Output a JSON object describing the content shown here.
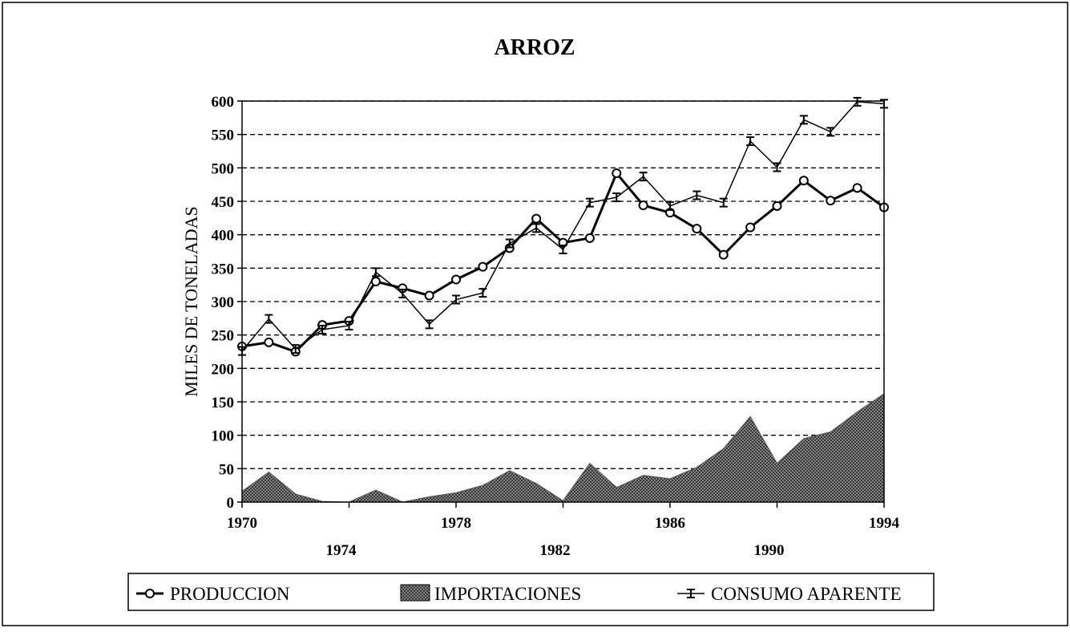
{
  "chart_data": {
    "type": "line",
    "title": "ARROZ",
    "ylabel": "MILES DE TONELADAS",
    "x": [
      1970,
      1971,
      1972,
      1973,
      1974,
      1975,
      1976,
      1977,
      1978,
      1979,
      1980,
      1981,
      1982,
      1983,
      1984,
      1985,
      1986,
      1987,
      1988,
      1989,
      1990,
      1991,
      1992,
      1993,
      1994
    ],
    "xlim": [
      1970,
      1994
    ],
    "xticks": [
      1970,
      1974,
      1978,
      1982,
      1986,
      1990,
      1994
    ],
    "ylim": [
      0,
      600
    ],
    "yticks": [
      0,
      50,
      100,
      150,
      200,
      250,
      300,
      350,
      400,
      450,
      500,
      550,
      600
    ],
    "grid": true,
    "series": [
      {
        "name": "PRODUCCION",
        "type": "line",
        "color": "#000000",
        "values": [
          233,
          239,
          225,
          265,
          271,
          330,
          320,
          309,
          333,
          352,
          380,
          424,
          388,
          395,
          492,
          444,
          433,
          409,
          370,
          411,
          443,
          481,
          451,
          470,
          441
        ]
      },
      {
        "name": "IMPORTACIONES",
        "type": "area",
        "color": "#555555",
        "values": [
          16,
          45,
          12,
          1,
          0,
          18,
          0,
          8,
          14,
          25,
          47,
          28,
          2,
          58,
          22,
          40,
          35,
          52,
          80,
          128,
          58,
          95,
          105,
          135,
          162
        ]
      },
      {
        "name": "CONSUMO APARENTE",
        "type": "line",
        "color": "#000000",
        "values": [
          226,
          274,
          229,
          258,
          264,
          344,
          312,
          266,
          303,
          313,
          387,
          410,
          378,
          448,
          456,
          487,
          443,
          459,
          448,
          540,
          501,
          572,
          554,
          599,
          596
        ]
      }
    ]
  }
}
